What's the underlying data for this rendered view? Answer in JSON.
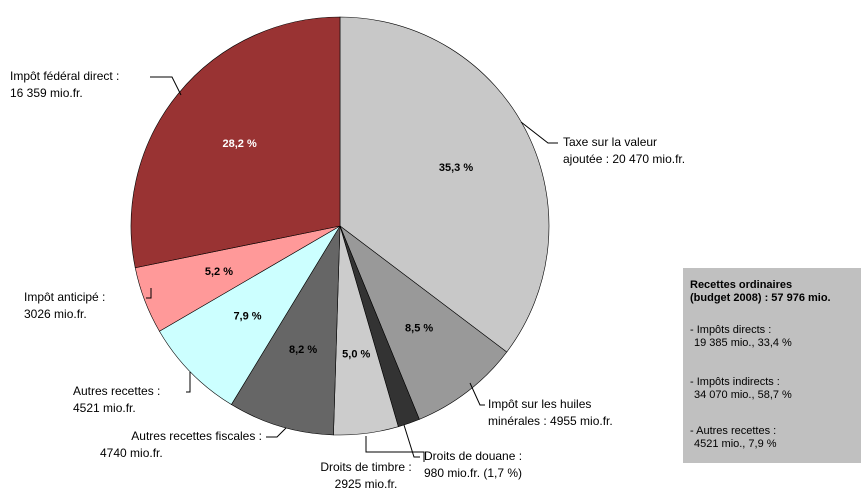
{
  "chart_data": {
    "type": "pie",
    "categories": [
      [
        "Taxe sur la valeur",
        "ajoutée : 20 470 mio.fr."
      ],
      [
        "Impôt sur les huiles",
        "minérales : 4955 mio.fr."
      ],
      [
        "Droits de douane :",
        "980 mio.fr. (1,7 %)"
      ],
      [
        "Droits de timbre :",
        "2925 mio.fr."
      ],
      [
        "Autres recettes fiscales :",
        "4740 mio.fr."
      ],
      [
        "Autres recettes :",
        "4521 mio.fr."
      ],
      [
        "Impôt anticipé :",
        "3026 mio.fr."
      ],
      [
        "Impôt fédéral direct :",
        "16 359 mio.fr."
      ]
    ],
    "values": [
      35.3,
      8.5,
      1.7,
      5.0,
      8.2,
      7.9,
      5.2,
      28.2
    ],
    "value_labels": [
      "35,3 %",
      "8,5 %",
      null,
      "5,0 %",
      "8,2 %",
      "7,9 %",
      "5,2 %",
      "28,2 %"
    ],
    "colors": [
      "#c8c8c8",
      "#999999",
      "#333333",
      "#cccccc",
      "#666666",
      "#ccffff",
      "#ff9999",
      "#993333"
    ],
    "note": {
      "title": [
        "Recettes ordinaires",
        "(budget 2008) : 57 976 mio."
      ],
      "items": [
        [
          "- Impôts directs :",
          "19 385 mio., 33,4 %"
        ],
        [
          "- Impôts indirects :",
          "34 070 mio., 58,7 %"
        ],
        [
          "- Autres recettes :",
          "4521 mio., 7,9 %"
        ]
      ]
    }
  }
}
